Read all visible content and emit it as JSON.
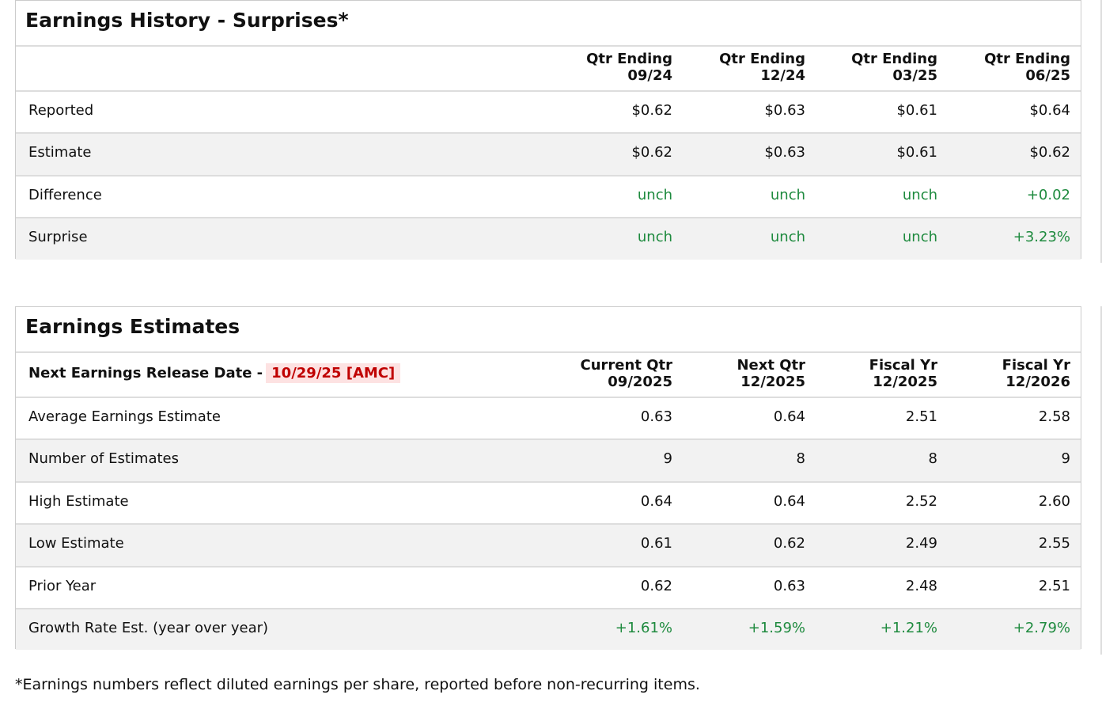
{
  "history": {
    "title": "Earnings History - Surprises*",
    "columns": [
      [
        "Qtr Ending",
        "09/24"
      ],
      [
        "Qtr Ending",
        "12/24"
      ],
      [
        "Qtr Ending",
        "03/25"
      ],
      [
        "Qtr Ending",
        "06/25"
      ]
    ],
    "rows": [
      {
        "label": "Reported",
        "cells": [
          "$0.62",
          "$0.63",
          "$0.61",
          "$0.64"
        ]
      },
      {
        "label": "Estimate",
        "cells": [
          "$0.62",
          "$0.63",
          "$0.61",
          "$0.62"
        ]
      },
      {
        "label": "Difference",
        "cells": [
          "unch",
          "unch",
          "unch",
          "+0.02"
        ],
        "color": "#1e8a3e"
      },
      {
        "label": "Surprise",
        "cells": [
          "unch",
          "unch",
          "unch",
          "+3.23%"
        ],
        "color": "#1e8a3e"
      }
    ]
  },
  "estimates": {
    "title": "Earnings Estimates",
    "release_label": "Next Earnings Release Date -",
    "release_date": "10/29/25 [AMC]",
    "columns": [
      [
        "Current Qtr",
        "09/2025"
      ],
      [
        "Next Qtr",
        "12/2025"
      ],
      [
        "Fiscal Yr",
        "12/2025"
      ],
      [
        "Fiscal Yr",
        "12/2026"
      ]
    ],
    "rows": [
      {
        "label": "Average Earnings Estimate",
        "cells": [
          "0.63",
          "0.64",
          "2.51",
          "2.58"
        ]
      },
      {
        "label": "Number of Estimates",
        "cells": [
          "9",
          "8",
          "8",
          "9"
        ]
      },
      {
        "label": "High Estimate",
        "cells": [
          "0.64",
          "0.64",
          "2.52",
          "2.60"
        ]
      },
      {
        "label": "Low Estimate",
        "cells": [
          "0.61",
          "0.62",
          "2.49",
          "2.55"
        ]
      },
      {
        "label": "Prior Year",
        "cells": [
          "0.62",
          "0.63",
          "2.48",
          "2.51"
        ]
      },
      {
        "label": "Growth Rate Est. (year over year)",
        "cells": [
          "+1.61%",
          "+1.59%",
          "+1.21%",
          "+2.79%"
        ],
        "color": "#1e8a3e"
      }
    ]
  },
  "footnote": "*Earnings numbers reflect diluted earnings per share, reported before non-recurring items."
}
